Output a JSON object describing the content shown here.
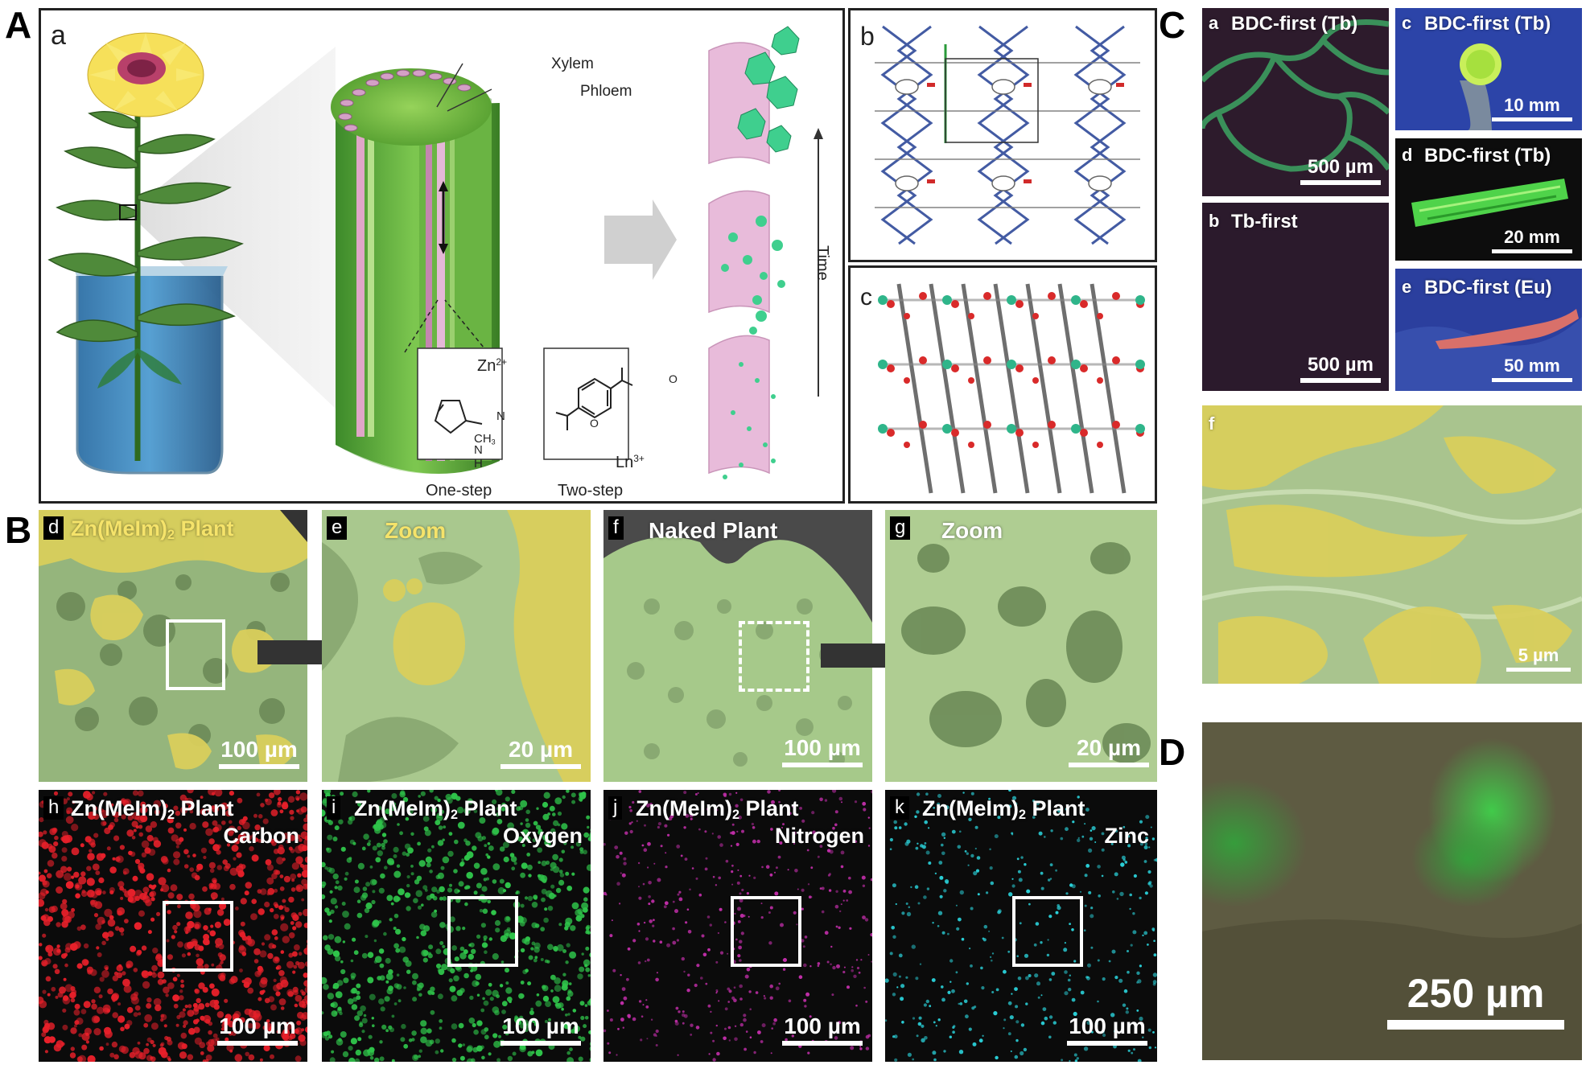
{
  "figure": {
    "big_letters": {
      "A": "A",
      "B": "B",
      "C": "C",
      "D": "D"
    },
    "panel_A": {
      "a_label": "a",
      "b_label": "b",
      "c_label": "c",
      "xylem": "Xylem",
      "phloem": "Phloem",
      "time": "Time",
      "zn": "Zn",
      "zn_charge": "2+",
      "ch3": "CH",
      "ch3_sub": "3",
      "nh": "H",
      "n_atom": "N",
      "n_atom2": "N",
      "ln": "Ln",
      "ln_charge": "3+",
      "o_minus1": "O",
      "o_minus2": "O",
      "one_step": "One-step",
      "two_step": "Two-step"
    },
    "panel_B": {
      "d_tag": "d",
      "d_title_pre": "Zn(MeIm)",
      "d_title_sub": "2",
      "d_title_post": " Plant",
      "d_scale": "100 µm",
      "e_tag": "e",
      "e_title": "Zoom",
      "e_scale": "20 µm",
      "f_tag": "f",
      "f_title": "Naked Plant",
      "f_scale": "100 µm",
      "g_tag": "g",
      "g_title": "Zoom",
      "g_scale": "20 µm",
      "maps": [
        {
          "tag": "h",
          "pre": "Zn(MeIm)",
          "sub": "2",
          "post": " Plant",
          "element": "Carbon",
          "scale": "100 µm",
          "color": "#e8202a"
        },
        {
          "tag": "i",
          "pre": "Zn(MeIm)",
          "sub": "2",
          "post": " Plant",
          "element": "Oxygen",
          "scale": "100 µm",
          "color": "#2fc44a"
        },
        {
          "tag": "j",
          "pre": "Zn(MeIm)",
          "sub": "2",
          "post": " Plant",
          "element": "Nitrogen",
          "scale": "100 µm",
          "color": "#c02ea8"
        },
        {
          "tag": "k",
          "pre": "Zn(MeIm)",
          "sub": "2",
          "post": " Plant",
          "element": "Zinc",
          "scale": "100 µm",
          "color": "#2ad0d8"
        }
      ]
    },
    "panel_C": {
      "a_tag": "a",
      "a_title": "BDC-first (Tb)",
      "a_scale": "500 µm",
      "b_tag": "b",
      "b_title": "Tb-first",
      "b_scale": "500 µm",
      "c_tag": "c",
      "c_title": "BDC-first (Tb)",
      "c_scale": "10 mm",
      "d_tag": "d",
      "d_title": "BDC-first (Tb)",
      "d_scale": "20 mm",
      "e_tag": "e",
      "e_title": "BDC-first (Eu)",
      "e_scale": "50 mm",
      "f_tag": "f",
      "f_scale": "5 µm"
    },
    "panel_D": {
      "scale": "250 µm"
    },
    "colors": {
      "sem_green": "#a9c98a",
      "mof_yellow": "#d9cf5c",
      "stem_pink": "#d89ac0",
      "crystal_green": "#3fcf8e"
    }
  }
}
